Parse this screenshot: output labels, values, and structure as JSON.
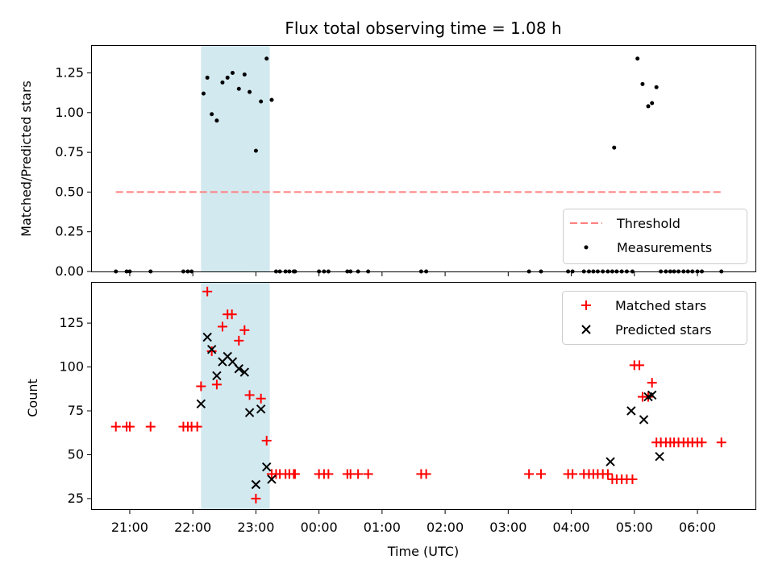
{
  "chart_data": {
    "title": "Flux total observing time = 1.08 h",
    "xlabel": "Time (UTC)",
    "x_unit": "hours since 20:00 UTC",
    "xlim": [
      0.4,
      10.92
    ],
    "xticks": [
      {
        "value": 1,
        "label": "21:00"
      },
      {
        "value": 2,
        "label": "22:00"
      },
      {
        "value": 3,
        "label": "23:00"
      },
      {
        "value": 4,
        "label": "00:00"
      },
      {
        "value": 5,
        "label": "01:00"
      },
      {
        "value": 6,
        "label": "02:00"
      },
      {
        "value": 7,
        "label": "03:00"
      },
      {
        "value": 8,
        "label": "04:00"
      },
      {
        "value": 9,
        "label": "05:00"
      },
      {
        "value": 10,
        "label": "06:00"
      }
    ],
    "shaded_span": {
      "x_start": 2.13,
      "x_end": 3.22,
      "color": "#d3e9f0"
    },
    "panels": [
      {
        "type": "scatter",
        "ylabel": "Matched/Predicted stars",
        "ylim": [
          0,
          1.42
        ],
        "yticks": [
          0.0,
          0.25,
          0.5,
          0.75,
          1.0,
          1.25
        ],
        "ytick_labels": [
          "0.00",
          "0.25",
          "0.50",
          "0.75",
          "1.00",
          "1.25"
        ],
        "legend": {
          "position": "lower-right",
          "entries": [
            {
              "label": "Threshold",
              "style": "dashed-line",
              "color": "#ff7f7f"
            },
            {
              "label": "Measurements",
              "style": "dot",
              "color": "#000000"
            }
          ]
        },
        "threshold": {
          "value": 0.5,
          "x_start": 0.78,
          "x_end": 10.38
        },
        "measurements": {
          "x": [
            0.78,
            0.95,
            1.0,
            1.33,
            1.85,
            1.92,
            1.98,
            2.17,
            2.23,
            2.3,
            2.38,
            2.47,
            2.55,
            2.63,
            2.73,
            2.82,
            2.9,
            3.0,
            3.08,
            3.17,
            3.25,
            3.32,
            3.38,
            3.47,
            3.53,
            3.6,
            3.62,
            4.0,
            4.08,
            4.15,
            4.45,
            4.5,
            4.62,
            4.78,
            5.62,
            5.7,
            7.33,
            7.52,
            7.95,
            8.02,
            8.2,
            8.28,
            8.35,
            8.42,
            8.5,
            8.58,
            8.65,
            8.68,
            8.72,
            8.8,
            8.88,
            8.97,
            9.05,
            9.13,
            9.22,
            9.28,
            9.35,
            9.42,
            9.5,
            9.57,
            9.63,
            9.7,
            9.78,
            9.85,
            9.92,
            10.0,
            10.07,
            10.38
          ],
          "y": [
            0,
            0,
            0,
            0,
            0,
            0,
            0,
            1.12,
            1.22,
            0.99,
            0.95,
            1.19,
            1.22,
            1.25,
            1.15,
            1.24,
            1.13,
            0.76,
            1.07,
            1.34,
            1.08,
            0,
            0,
            0,
            0,
            0,
            0,
            0,
            0,
            0,
            0,
            0,
            0,
            0,
            0,
            0,
            0,
            0,
            0,
            0,
            0,
            0,
            0,
            0,
            0,
            0,
            0,
            0.78,
            0,
            0,
            0,
            0,
            1.34,
            1.18,
            1.04,
            1.06,
            1.16,
            0,
            0,
            0,
            0,
            0,
            0,
            0,
            0,
            0,
            0,
            0
          ]
        }
      },
      {
        "type": "scatter",
        "ylabel": "Count",
        "ylim": [
          19,
          148
        ],
        "yticks": [
          25,
          50,
          75,
          100,
          125
        ],
        "ytick_labels": [
          "25",
          "50",
          "75",
          "100",
          "125"
        ],
        "legend": {
          "position": "upper-right",
          "entries": [
            {
              "label": "Matched stars",
              "style": "plus",
              "color": "#ff0000"
            },
            {
              "label": "Predicted stars",
              "style": "x",
              "color": "#000000"
            }
          ]
        },
        "series": [
          {
            "name": "Matched stars",
            "marker": "plus",
            "color": "#ff0000",
            "x": [
              0.78,
              0.95,
              1.0,
              1.33,
              1.85,
              1.92,
              1.98,
              2.07,
              2.13,
              2.23,
              2.3,
              2.38,
              2.47,
              2.55,
              2.62,
              2.73,
              2.82,
              2.9,
              3.0,
              3.08,
              3.17,
              3.25,
              3.32,
              3.38,
              3.47,
              3.53,
              3.6,
              3.62,
              4.0,
              4.08,
              4.15,
              4.45,
              4.5,
              4.62,
              4.78,
              5.62,
              5.7,
              7.33,
              7.52,
              7.95,
              8.02,
              8.2,
              8.28,
              8.35,
              8.42,
              8.5,
              8.58,
              8.65,
              8.72,
              8.8,
              8.88,
              8.97,
              9.0,
              9.08,
              9.13,
              9.22,
              9.28,
              9.35,
              9.42,
              9.5,
              9.57,
              9.63,
              9.7,
              9.78,
              9.85,
              9.92,
              10.0,
              10.07,
              10.38
            ],
            "y": [
              66,
              66,
              66,
              66,
              66,
              66,
              66,
              66,
              89,
              143,
              109,
              90,
              123,
              130,
              130,
              115,
              121,
              84,
              25,
              82,
              58,
              39,
              39,
              39,
              39,
              39,
              39,
              39,
              39,
              39,
              39,
              39,
              39,
              39,
              39,
              39,
              39,
              39,
              39,
              39,
              39,
              39,
              39,
              39,
              39,
              39,
              39,
              36,
              36,
              36,
              36,
              36,
              101,
              101,
              83,
              83,
              91,
              57,
              57,
              57,
              57,
              57,
              57,
              57,
              57,
              57,
              57,
              57,
              57
            ]
          },
          {
            "name": "Predicted stars",
            "marker": "x",
            "color": "#000000",
            "x": [
              2.13,
              2.23,
              2.3,
              2.38,
              2.47,
              2.55,
              2.63,
              2.73,
              2.82,
              2.9,
              3.0,
              3.08,
              3.17,
              3.25,
              8.62,
              8.95,
              9.15,
              9.22,
              9.28,
              9.4
            ],
            "y": [
              79,
              117,
              110,
              95,
              103,
              106,
              103,
              99,
              97,
              74,
              33,
              76,
              43,
              36,
              46,
              75,
              70,
              83,
              84,
              49
            ]
          }
        ]
      }
    ]
  }
}
